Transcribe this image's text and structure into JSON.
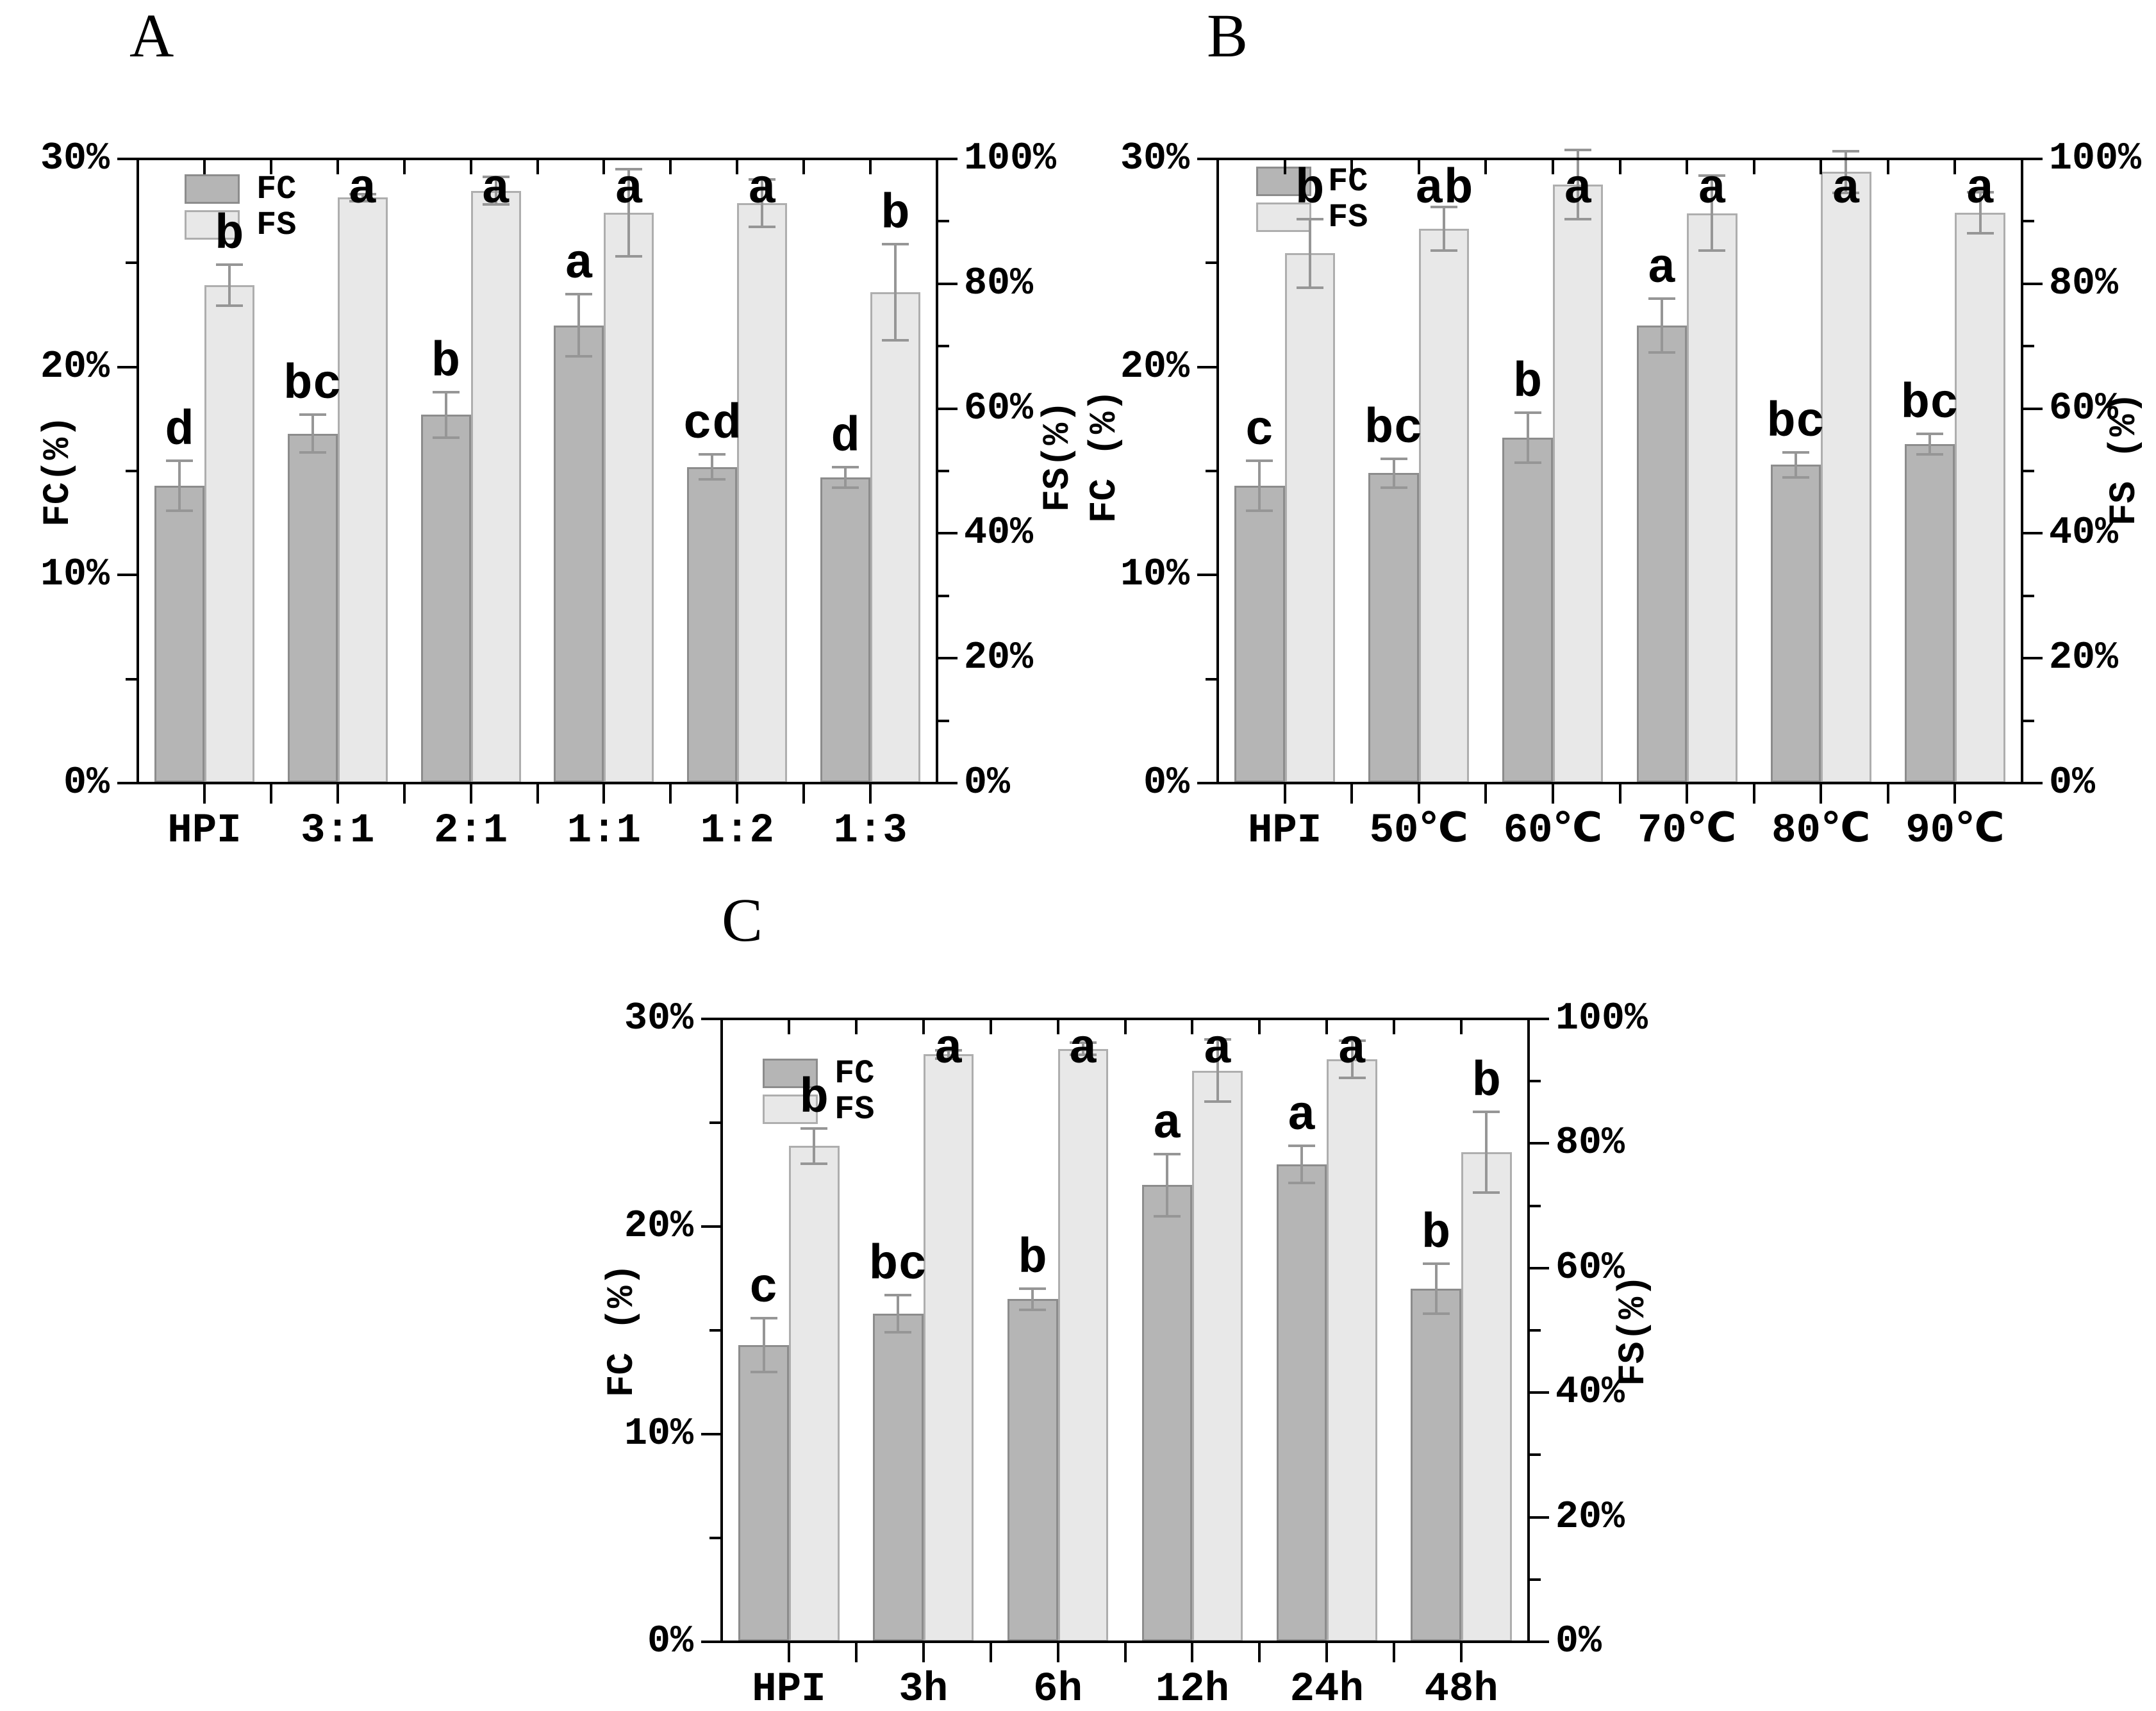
{
  "figure": {
    "background": "#ffffff",
    "colors": {
      "fc_fill": "#b5b5b5",
      "fc_border": "#8c8c8c",
      "fs_fill": "#e8e8e8",
      "fs_border": "#aeaeae",
      "error_bar": "#969696",
      "axis": "#000000",
      "text": "#000000"
    }
  },
  "chart_data": [
    {
      "panel_label": "A",
      "type": "bar",
      "grid": false,
      "legend": {
        "position": "top-left-inside",
        "entries": [
          "FC",
          "FS"
        ]
      },
      "categories": [
        "HPI",
        "3:1",
        "2:1",
        "1:1",
        "1:2",
        "1:3"
      ],
      "left_axis": {
        "title": "FC(%)",
        "range": [
          0,
          30
        ],
        "minor_every": 5,
        "major_ticks": [
          {
            "v": 0,
            "label": "0%"
          },
          {
            "v": 10,
            "label": "10%"
          },
          {
            "v": 20,
            "label": "20%"
          },
          {
            "v": 30,
            "label": "30%"
          }
        ]
      },
      "right_axis": {
        "title": "FS(%)",
        "range": [
          0,
          100
        ],
        "minor_every": 10,
        "major_ticks": [
          {
            "v": 0,
            "label": "0%"
          },
          {
            "v": 20,
            "label": "20%"
          },
          {
            "v": 40,
            "label": "40%"
          },
          {
            "v": 60,
            "label": "60%"
          },
          {
            "v": 80,
            "label": "80%"
          },
          {
            "v": 100,
            "label": "100%"
          }
        ]
      },
      "series": [
        {
          "name": "FC",
          "axis": "left",
          "values": [
            14.3,
            16.8,
            17.7,
            22.0,
            15.2,
            14.7
          ],
          "errors": [
            1.2,
            0.9,
            1.1,
            1.5,
            0.6,
            0.5
          ],
          "sig_letters": [
            "d",
            "bc",
            "b",
            "a",
            "cd",
            "d"
          ]
        },
        {
          "name": "FS",
          "axis": "right",
          "values": [
            79.8,
            93.8,
            94.9,
            91.4,
            92.9,
            78.6
          ],
          "errors": [
            3.3,
            0.6,
            2.2,
            7.0,
            3.8,
            7.7
          ],
          "sig_letters": [
            "b",
            "a",
            "a",
            "a",
            "a",
            "b"
          ]
        }
      ]
    },
    {
      "panel_label": "B",
      "type": "bar",
      "grid": false,
      "legend": {
        "position": "top-left-inside",
        "entries": [
          "FC",
          "FS"
        ]
      },
      "categories": [
        "HPI",
        "50℃",
        "60℃",
        "70℃",
        "80℃",
        "90℃"
      ],
      "left_axis": {
        "title": "FC (%)",
        "range": [
          0,
          30
        ],
        "minor_every": 5,
        "major_ticks": [
          {
            "v": 0,
            "label": "0%"
          },
          {
            "v": 10,
            "label": "10%"
          },
          {
            "v": 20,
            "label": "20%"
          },
          {
            "v": 30,
            "label": "30%"
          }
        ]
      },
      "right_axis": {
        "title": "FS (%)",
        "range": [
          0,
          100
        ],
        "minor_every": 10,
        "major_ticks": [
          {
            "v": 0,
            "label": "0%"
          },
          {
            "v": 20,
            "label": "20%"
          },
          {
            "v": 40,
            "label": "40%"
          },
          {
            "v": 60,
            "label": "60%"
          },
          {
            "v": 80,
            "label": "80%"
          },
          {
            "v": 100,
            "label": "100%"
          }
        ]
      },
      "series": [
        {
          "name": "FC",
          "axis": "left",
          "values": [
            14.3,
            14.9,
            16.6,
            22.0,
            15.3,
            16.3
          ],
          "errors": [
            1.2,
            0.7,
            1.2,
            1.3,
            0.6,
            0.5
          ],
          "sig_letters": [
            "c",
            "bc",
            "b",
            "a",
            "bc",
            "bc"
          ]
        },
        {
          "name": "FS",
          "axis": "right",
          "values": [
            84.9,
            88.8,
            95.9,
            91.3,
            97.9,
            91.4
          ],
          "errors": [
            5.5,
            3.5,
            5.5,
            6.0,
            3.3,
            3.3
          ],
          "sig_letters": [
            "b",
            "ab",
            "a",
            "a",
            "a",
            "a"
          ]
        }
      ]
    },
    {
      "panel_label": "C",
      "type": "bar",
      "grid": false,
      "legend": {
        "position": "top-left-inside",
        "entries": [
          "FC",
          "FS"
        ]
      },
      "categories": [
        "HPI",
        "3h",
        "6h",
        "12h",
        "24h",
        "48h"
      ],
      "left_axis": {
        "title": "FC (%)",
        "range": [
          0,
          30
        ],
        "minor_every": 5,
        "major_ticks": [
          {
            "v": 0,
            "label": "0%"
          },
          {
            "v": 10,
            "label": "10%"
          },
          {
            "v": 20,
            "label": "20%"
          },
          {
            "v": 30,
            "label": "30%"
          }
        ]
      },
      "right_axis": {
        "title": "FS(%)",
        "range": [
          0,
          100
        ],
        "minor_every": 10,
        "major_ticks": [
          {
            "v": 0,
            "label": "0%"
          },
          {
            "v": 20,
            "label": "20%"
          },
          {
            "v": 40,
            "label": "40%"
          },
          {
            "v": 60,
            "label": "60%"
          },
          {
            "v": 80,
            "label": "80%"
          },
          {
            "v": 100,
            "label": "100%"
          }
        ]
      },
      "series": [
        {
          "name": "FC",
          "axis": "left",
          "values": [
            14.3,
            15.8,
            16.5,
            22.0,
            23.0,
            17.0
          ],
          "errors": [
            1.3,
            0.9,
            0.5,
            1.5,
            0.9,
            1.2
          ],
          "sig_letters": [
            "c",
            "bc",
            "b",
            "a",
            "a",
            "b"
          ]
        },
        {
          "name": "FS",
          "axis": "right",
          "values": [
            79.6,
            94.3,
            95.2,
            91.7,
            93.5,
            78.6
          ],
          "errors": [
            2.8,
            0.7,
            1.0,
            5.0,
            3.0,
            6.5
          ],
          "sig_letters": [
            "b",
            "a",
            "a",
            "a",
            "a",
            "b"
          ]
        }
      ]
    }
  ]
}
